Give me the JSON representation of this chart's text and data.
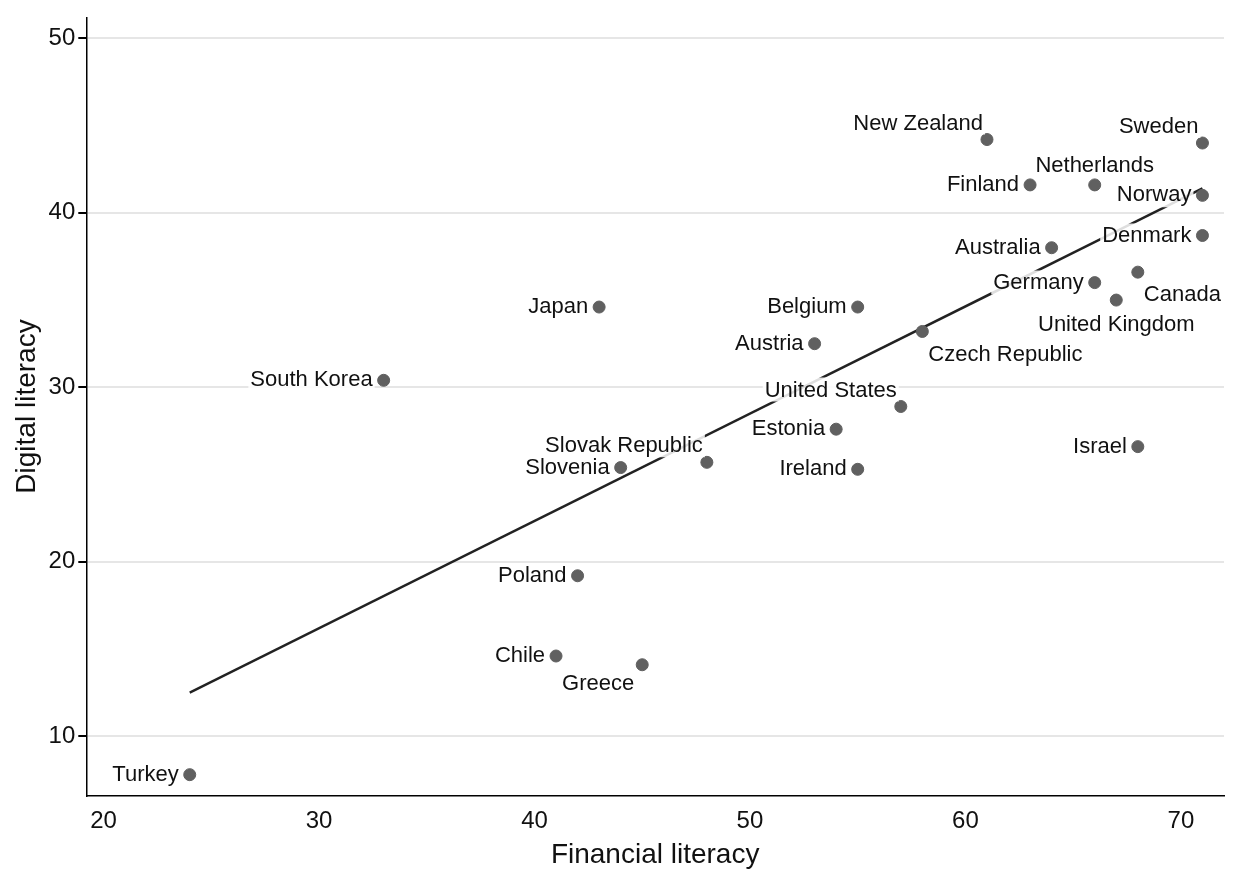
{
  "chart_data": {
    "type": "scatter",
    "xlabel": "Financial literacy",
    "ylabel": "Digital literacy",
    "xlim": [
      19.2,
      72
    ],
    "xticks": [
      20,
      30,
      40,
      50,
      60,
      70
    ],
    "ylim": [
      6.6,
      51.2
    ],
    "yticks": [
      10,
      20,
      30,
      40,
      50
    ],
    "grid": "y",
    "series": [
      {
        "marker": "circle",
        "color": "#606060",
        "x": [
          24,
          33,
          43,
          42,
          41,
          45,
          44,
          48,
          53,
          55,
          54,
          55,
          57,
          58,
          61,
          63,
          66,
          64,
          66,
          68,
          67,
          71,
          71,
          71,
          68
        ],
        "values": [
          7.8,
          30.4,
          34.6,
          19.2,
          14.6,
          14.1,
          25.4,
          25.7,
          32.5,
          34.6,
          27.6,
          25.3,
          28.9,
          33.2,
          44.2,
          41.6,
          41.6,
          38.0,
          36.0,
          36.6,
          35.0,
          44.0,
          41.0,
          38.7,
          26.6
        ]
      },
      {
        "type": "line",
        "marker": "none",
        "color": "#222222",
        "x": [
          24,
          71
        ],
        "values": [
          12.5,
          41.4
        ]
      }
    ],
    "annotations": [
      {
        "text": "Turkey",
        "x": 24,
        "y": 7.8
      },
      {
        "text": "South Korea",
        "x": 33,
        "y": 30.4
      },
      {
        "text": "Japan",
        "x": 43,
        "y": 34.6
      },
      {
        "text": "Poland",
        "x": 42,
        "y": 19.2
      },
      {
        "text": "Chile",
        "x": 41,
        "y": 14.6
      },
      {
        "text": "Greece",
        "x": 45,
        "y": 14.1
      },
      {
        "text": "Slovenia",
        "x": 44,
        "y": 25.4
      },
      {
        "text": "Slovak Republic",
        "x": 48,
        "y": 25.7
      },
      {
        "text": "Austria",
        "x": 53,
        "y": 32.5
      },
      {
        "text": "Belgium",
        "x": 55,
        "y": 34.6
      },
      {
        "text": "Estonia",
        "x": 54,
        "y": 27.6
      },
      {
        "text": "Ireland",
        "x": 55,
        "y": 25.3
      },
      {
        "text": "United States",
        "x": 57,
        "y": 28.9
      },
      {
        "text": "Czech Republic",
        "x": 58,
        "y": 33.2
      },
      {
        "text": "New Zealand",
        "x": 61,
        "y": 44.2
      },
      {
        "text": "Finland",
        "x": 63,
        "y": 41.6
      },
      {
        "text": "Netherlands",
        "x": 66,
        "y": 41.6
      },
      {
        "text": "Australia",
        "x": 64,
        "y": 38.0
      },
      {
        "text": "Germany",
        "x": 66,
        "y": 36.0
      },
      {
        "text": "Canada",
        "x": 68,
        "y": 36.6
      },
      {
        "text": "United Kingdom",
        "x": 67,
        "y": 35.0
      },
      {
        "text": "Sweden",
        "x": 71,
        "y": 44.0
      },
      {
        "text": "Norway",
        "x": 71,
        "y": 41.0
      },
      {
        "text": "Denmark",
        "x": 71,
        "y": 38.7
      },
      {
        "text": "Israel",
        "x": 68,
        "y": 26.6
      }
    ]
  }
}
